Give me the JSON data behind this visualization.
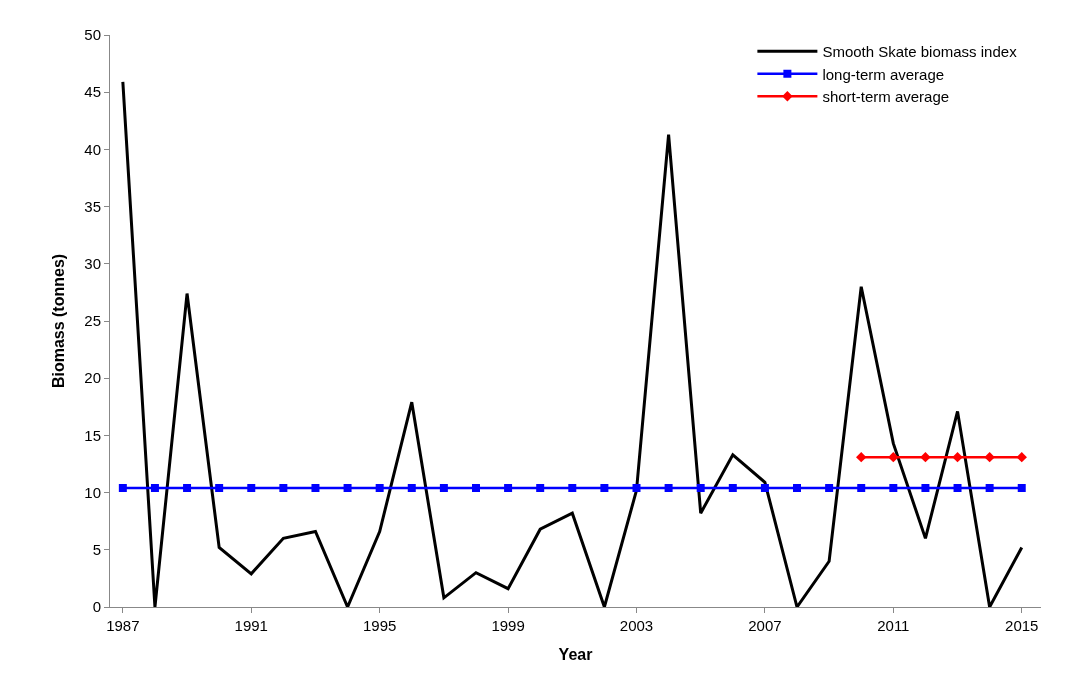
{
  "chart_data": {
    "type": "line",
    "xlabel": "Year",
    "ylabel": "Biomass (tonnes)",
    "xlim": [
      1986.6,
      2015.6
    ],
    "xticks": [
      1987,
      1991,
      1995,
      1999,
      2003,
      2007,
      2011,
      2015
    ],
    "ylim": [
      0,
      50
    ],
    "yticks": [
      0,
      5,
      10,
      15,
      20,
      25,
      30,
      35,
      40,
      45,
      50
    ],
    "legend": "top right",
    "series": [
      {
        "name": "Smooth Skate biomass index",
        "color": "#000000",
        "marker": "none",
        "x": [
          1987,
          1988,
          1989,
          1990,
          1991,
          1992,
          1993,
          1994,
          1995,
          1996,
          1997,
          1998,
          1999,
          2000,
          2001,
          2002,
          2003,
          2004,
          2005,
          2006,
          2007,
          2008,
          2009,
          2010,
          2011,
          2012,
          2013,
          2014,
          2015
        ],
        "values": [
          45.9,
          0,
          27.4,
          5.2,
          2.9,
          6.0,
          6.6,
          0,
          6.6,
          17.9,
          0.8,
          3.0,
          1.6,
          6.8,
          8.2,
          0,
          10.2,
          41.3,
          8.2,
          13.3,
          10.9,
          0,
          4.0,
          28.0,
          14.3,
          6.0,
          17.1,
          0,
          5.2
        ]
      },
      {
        "name": "long-term average",
        "color": "#0000ff",
        "marker": "square",
        "x": [
          1987,
          1988,
          1989,
          1990,
          1991,
          1992,
          1993,
          1994,
          1995,
          1996,
          1997,
          1998,
          1999,
          2000,
          2001,
          2002,
          2003,
          2004,
          2005,
          2006,
          2007,
          2008,
          2009,
          2010,
          2011,
          2012,
          2013,
          2014,
          2015
        ],
        "values": [
          10.4,
          10.4,
          10.4,
          10.4,
          10.4,
          10.4,
          10.4,
          10.4,
          10.4,
          10.4,
          10.4,
          10.4,
          10.4,
          10.4,
          10.4,
          10.4,
          10.4,
          10.4,
          10.4,
          10.4,
          10.4,
          10.4,
          10.4,
          10.4,
          10.4,
          10.4,
          10.4,
          10.4,
          10.4
        ]
      },
      {
        "name": "short-term average",
        "color": "#ff0000",
        "marker": "diamond",
        "x": [
          2010,
          2011,
          2012,
          2013,
          2014,
          2015
        ],
        "values": [
          13.1,
          13.1,
          13.1,
          13.1,
          13.1,
          13.1
        ]
      }
    ]
  }
}
